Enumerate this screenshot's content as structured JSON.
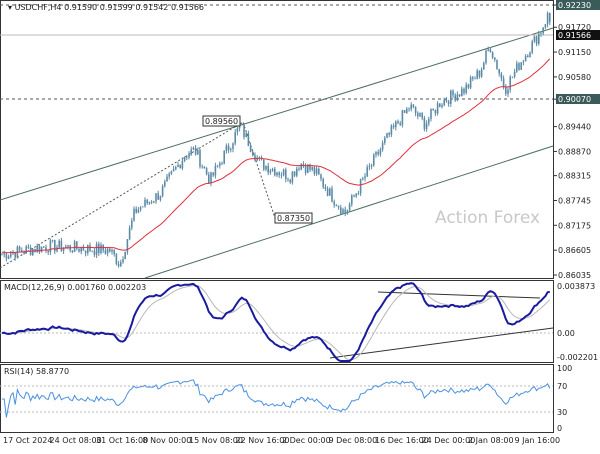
{
  "header": {
    "symbol": "USDCHF,H4",
    "ohlc": "0.91590 0.91599 0.91542 0.91566"
  },
  "price_axis": [
    "0.92230",
    "0.91720",
    "0.91150",
    "0.90580",
    "0.90070",
    "0.89440",
    "0.88870",
    "0.88315",
    "0.87745",
    "0.87175",
    "0.86605",
    "0.86035"
  ],
  "price_axis_values": [
    0.9223,
    0.9172,
    0.9115,
    0.9058,
    0.9007,
    0.8944,
    0.8887,
    0.88315,
    0.87745,
    0.87175,
    0.86605,
    0.86035
  ],
  "current_price": "0.91566",
  "highlighted_levels": [
    "0.92230",
    "0.90070"
  ],
  "annotations": {
    "high": "0.89560",
    "low": "0.87350"
  },
  "watermark": "Action Forex",
  "macd": {
    "label": "MACD(12,26,9) 0.001760 0.002203",
    "axis": [
      "0.003873",
      "0.00",
      "-0.002201"
    ]
  },
  "rsi": {
    "label": "RSI(14) 58.8770",
    "axis": [
      "100",
      "70",
      "30",
      "0"
    ]
  },
  "time_axis": [
    "17 Oct 2024",
    "24 Oct 08:00",
    "31 Oct 16:00",
    "8 Nov 00:00",
    "15 Nov 08:00",
    "22 Nov 16:00",
    "2 Dec 00:00",
    "9 Dec 08:00",
    "16 Dec 16:00",
    "24 Dec 00:00",
    "2 Jan 08:00",
    "9 Jan 16:00"
  ],
  "colors": {
    "candles": "#5b8aa6",
    "ma": "#e0303a",
    "macd": "#1a1aa0",
    "signal": "#b8b8b8",
    "rsi": "#4a90e2",
    "channel": "#4d6e5e"
  },
  "path_anchors": [
    [
      0,
      0.865
    ],
    [
      50,
      0.867
    ],
    [
      110,
      0.866
    ],
    [
      120,
      0.8628
    ],
    [
      135,
      0.875
    ],
    [
      160,
      0.879
    ],
    [
      185,
      0.888
    ],
    [
      195,
      0.889
    ],
    [
      210,
      0.882
    ],
    [
      240,
      0.8945
    ],
    [
      260,
      0.886
    ],
    [
      280,
      0.884
    ],
    [
      290,
      0.883
    ],
    [
      300,
      0.886
    ],
    [
      315,
      0.884
    ],
    [
      330,
      0.879
    ],
    [
      345,
      0.8745
    ],
    [
      365,
      0.883
    ],
    [
      385,
      0.891
    ],
    [
      400,
      0.896
    ],
    [
      410,
      0.899
    ],
    [
      425,
      0.895
    ],
    [
      440,
      0.9
    ],
    [
      465,
      0.903
    ],
    [
      480,
      0.907
    ],
    [
      490,
      0.913
    ],
    [
      505,
      0.903
    ],
    [
      520,
      0.909
    ],
    [
      540,
      0.916
    ],
    [
      548,
      0.92
    ],
    [
      553,
      0.9157
    ]
  ]
}
